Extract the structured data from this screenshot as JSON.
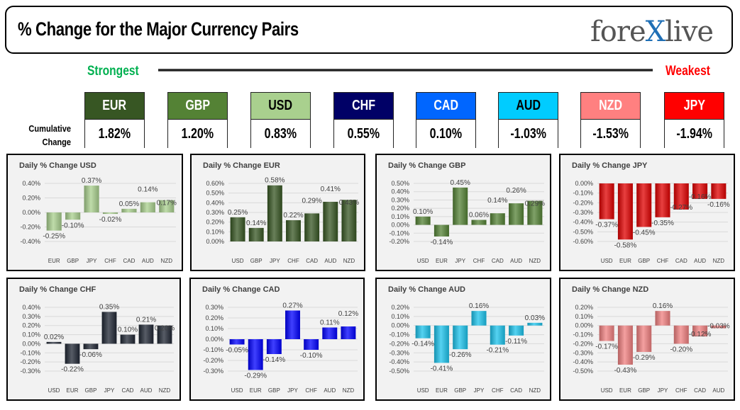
{
  "header": {
    "title": "% Change for the Major Currency Pairs",
    "logo_text": "forexlive",
    "strongest": "Strongest",
    "weakest": "Weakest",
    "cumulative_label": "Cumulative Change"
  },
  "ranking": [
    {
      "currency": "EUR",
      "change": "1.82%",
      "bg": "#375623",
      "fg": "#ffffff"
    },
    {
      "currency": "GBP",
      "change": "1.20%",
      "bg": "#548235",
      "fg": "#ffffff"
    },
    {
      "currency": "USD",
      "change": "0.83%",
      "bg": "#a9d08e",
      "fg": "#000000"
    },
    {
      "currency": "CHF",
      "change": "0.55%",
      "bg": "#000066",
      "fg": "#ffffff"
    },
    {
      "currency": "CAD",
      "change": "0.10%",
      "bg": "#0066ff",
      "fg": "#ffffff"
    },
    {
      "currency": "AUD",
      "change": "-1.03%",
      "bg": "#00ccff",
      "fg": "#000000"
    },
    {
      "currency": "NZD",
      "change": "-1.53%",
      "bg": "#ff8080",
      "fg": "#ffffff"
    },
    {
      "currency": "JPY",
      "change": "-1.94%",
      "bg": "#ff0000",
      "fg": "#ffffff"
    }
  ],
  "chart_data": [
    {
      "type": "bar",
      "title": "Daily % Change USD",
      "color": "#a9d08e",
      "categories": [
        "EUR",
        "GBP",
        "JPY",
        "CHF",
        "CAD",
        "AUD",
        "NZD"
      ],
      "values": [
        -0.25,
        -0.1,
        0.37,
        -0.02,
        0.05,
        0.14,
        0.17
      ],
      "labels": [
        "-0.25%",
        "-0.10%",
        "0.37%",
        "-0.02%",
        "0.05%",
        "0.14%",
        "0.17%"
      ],
      "ylim": [
        -0.4,
        0.4
      ],
      "yticks": [
        "0.40%",
        "0.20%",
        "0.00%",
        "-0.20%",
        "-0.40%"
      ],
      "grid": true
    },
    {
      "type": "bar",
      "title": "Daily % Change EUR",
      "color": "#375623",
      "categories": [
        "USD",
        "GBP",
        "JPY",
        "CHF",
        "CAD",
        "AUD",
        "NZD"
      ],
      "values": [
        0.25,
        0.14,
        0.58,
        0.22,
        0.29,
        0.41,
        0.43
      ],
      "labels": [
        "0.25%",
        "0.14%",
        "0.58%",
        "0.22%",
        "0.29%",
        "0.41%",
        "0.43%"
      ],
      "ylim": [
        0,
        0.6
      ],
      "yticks": [
        "0.60%",
        "0.50%",
        "0.40%",
        "0.30%",
        "0.20%",
        "0.10%",
        "0.00%"
      ],
      "grid": true
    },
    {
      "type": "bar",
      "title": "Daily % Change GBP",
      "color": "#548235",
      "categories": [
        "USD",
        "EUR",
        "JPY",
        "CHF",
        "CAD",
        "AUD",
        "NZD"
      ],
      "values": [
        0.1,
        -0.14,
        0.45,
        0.06,
        0.14,
        0.26,
        0.29
      ],
      "labels": [
        "0.10%",
        "-0.14%",
        "0.45%",
        "0.06%",
        "0.14%",
        "0.26%",
        "0.29%"
      ],
      "ylim": [
        -0.2,
        0.5
      ],
      "yticks": [
        "0.50%",
        "0.40%",
        "0.30%",
        "0.20%",
        "0.10%",
        "0.00%",
        "-0.10%",
        "-0.20%"
      ],
      "grid": true
    },
    {
      "type": "bar",
      "title": "Daily % Change JPY",
      "color": "#e00000",
      "categories": [
        "USD",
        "EUR",
        "GBP",
        "CHF",
        "CAD",
        "AUD",
        "NZD"
      ],
      "values": [
        -0.37,
        -0.58,
        -0.45,
        -0.35,
        -0.27,
        -0.16,
        -0.16
      ],
      "labels": [
        "-0.37%",
        "-0.58%",
        "-0.45%",
        "-0.35%",
        "-0.27%",
        "-0.16%",
        "-0.16%"
      ],
      "ylim": [
        -0.6,
        0
      ],
      "yticks": [
        "0.00%",
        "-0.10%",
        "-0.20%",
        "-0.30%",
        "-0.40%",
        "-0.50%",
        "-0.60%"
      ],
      "grid": true
    },
    {
      "type": "bar",
      "title": "Daily % Change CHF",
      "color": "#1f2633",
      "categories": [
        "USD",
        "EUR",
        "GBP",
        "JPY",
        "CAD",
        "AUD",
        "NZD"
      ],
      "values": [
        0.02,
        -0.22,
        -0.06,
        0.35,
        0.1,
        0.21,
        0.2
      ],
      "labels": [
        "0.02%",
        "-0.22%",
        "-0.06%",
        "0.35%",
        "0.10%",
        "0.21%",
        "0.20%"
      ],
      "ylim": [
        -0.3,
        0.4
      ],
      "yticks": [
        "0.40%",
        "0.30%",
        "0.20%",
        "0.10%",
        "0.00%",
        "-0.10%",
        "-0.20%",
        "-0.30%"
      ],
      "grid": true
    },
    {
      "type": "bar",
      "title": "Daily % Change CAD",
      "color": "#0000ff",
      "categories": [
        "USD",
        "EUR",
        "GBP",
        "JPY",
        "CHF",
        "AUD",
        "NZD"
      ],
      "values": [
        -0.05,
        -0.29,
        -0.14,
        0.27,
        -0.1,
        0.11,
        0.12
      ],
      "labels": [
        "-0.05%",
        "-0.29%",
        "-0.14%",
        "0.27%",
        "-0.10%",
        "0.11%",
        "0.12%"
      ],
      "ylim": [
        -0.3,
        0.3
      ],
      "yticks": [
        "0.30%",
        "0.20%",
        "0.10%",
        "0.00%",
        "-0.10%",
        "-0.20%",
        "-0.30%"
      ],
      "grid": true
    },
    {
      "type": "bar",
      "title": "Daily % Change AUD",
      "color": "#1cc3ec",
      "categories": [
        "USD",
        "EUR",
        "GBP",
        "JPY",
        "CHF",
        "CAD",
        "NZD"
      ],
      "values": [
        -0.14,
        -0.41,
        -0.26,
        0.16,
        -0.21,
        -0.11,
        0.03
      ],
      "labels": [
        "-0.14%",
        "-0.41%",
        "-0.26%",
        "0.16%",
        "-0.21%",
        "-0.11%",
        "0.03%"
      ],
      "ylim": [
        -0.5,
        0.2
      ],
      "yticks": [
        "0.20%",
        "0.10%",
        "0.00%",
        "-0.10%",
        "-0.20%",
        "-0.30%",
        "-0.40%",
        "-0.50%"
      ],
      "grid": true
    },
    {
      "type": "bar",
      "title": "Daily % Change NZD",
      "color": "#f08080",
      "categories": [
        "USD",
        "EUR",
        "GBP",
        "JPY",
        "CHF",
        "CAD",
        "AUD"
      ],
      "values": [
        -0.17,
        -0.43,
        -0.29,
        0.16,
        -0.2,
        -0.12,
        -0.03
      ],
      "labels": [
        "-0.17%",
        "-0.43%",
        "-0.29%",
        "0.16%",
        "-0.20%",
        "-0.12%",
        "-0.03%"
      ],
      "ylim": [
        -0.5,
        0.2
      ],
      "yticks": [
        "0.20%",
        "0.10%",
        "0.00%",
        "-0.10%",
        "-0.20%",
        "-0.30%",
        "-0.40%",
        "-0.50%"
      ],
      "grid": true
    }
  ]
}
